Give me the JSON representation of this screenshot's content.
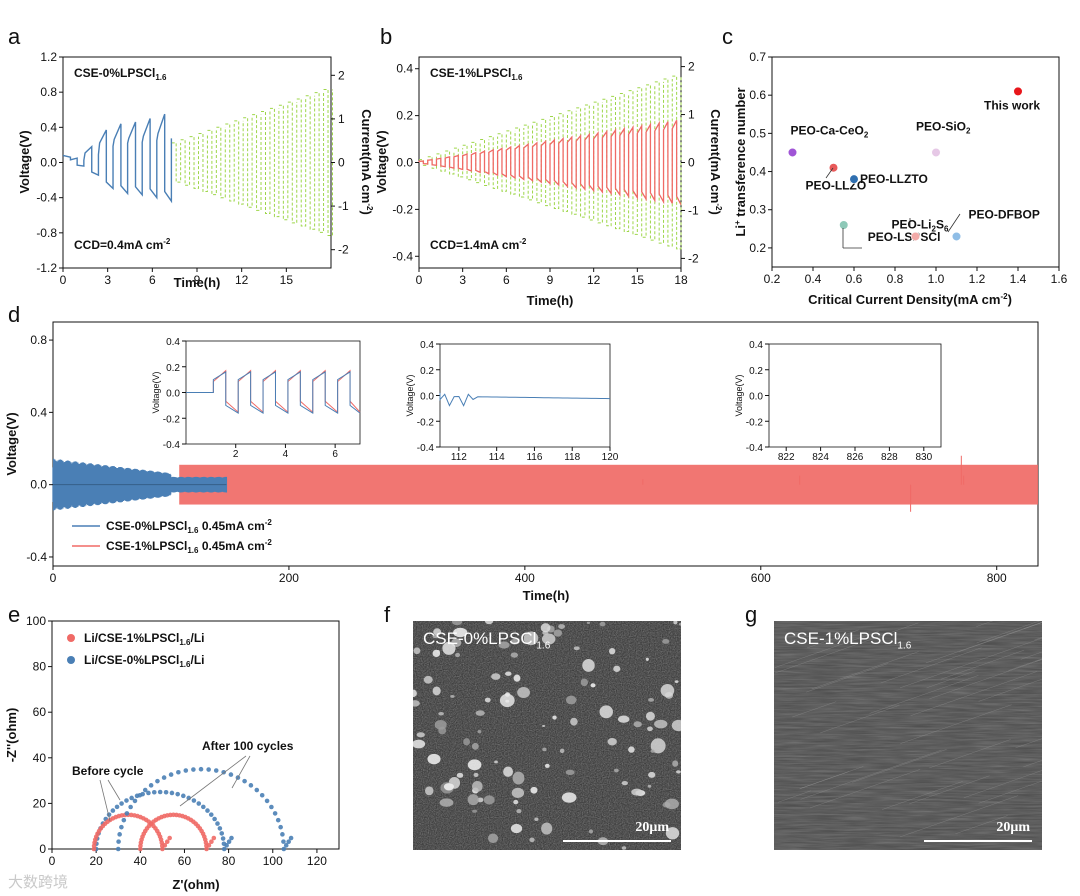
{
  "panels": {
    "a": "a",
    "b": "b",
    "c": "c",
    "d": "d",
    "e": "e",
    "f": "f",
    "g": "g"
  },
  "colors": {
    "blue": "#4a7fb5",
    "red": "#f06a66",
    "green": "#9ed64a",
    "dark_red": "#e8161b"
  },
  "chart_data": [
    {
      "id": "a",
      "type": "line",
      "title_main": "CSE-0%LPSCl",
      "title_sub": "1.6",
      "annotation": "CCD=0.4mA cm",
      "annotation_exp": "-2",
      "xlabel": "Time(h)",
      "ylabel": "Voltage(V)",
      "y2label": "Current(mA cm",
      "xlim": [
        0,
        18
      ],
      "ylim": [
        -1.2,
        1.2
      ],
      "y2lim": [
        -2.42,
        2.42
      ],
      "xticks": [
        0,
        3,
        6,
        9,
        12,
        15
      ],
      "yticks": [
        -1.2,
        -0.8,
        -0.4,
        0.0,
        0.4,
        0.8,
        1.2
      ],
      "yticklabels": [
        "-1.2",
        "-0.8",
        "-0.4",
        "0.0",
        "0.4",
        "0.8",
        "1.2"
      ],
      "y2ticks": [
        -2,
        -1,
        0,
        1,
        2
      ],
      "series": [
        {
          "name": "Voltage",
          "axis": "left",
          "color": "#4a7fb5",
          "cycle_hours": 1.0,
          "end_hour": 7.3,
          "cycle_amplitudes": [
            0.05,
            0.18,
            0.37,
            0.44,
            0.46,
            0.5,
            0.55
          ]
        },
        {
          "name": "Current",
          "axis": "right",
          "color": "#9ed64a",
          "cycle_hours": 0.6,
          "end_hour": 17.6,
          "amplitude_step": 0.05
        }
      ]
    },
    {
      "id": "b",
      "type": "line",
      "title_main": "CSE-1%LPSCl",
      "title_sub": "1.6",
      "annotation": "CCD=1.4mA cm",
      "annotation_exp": "-2",
      "xlabel": "Time(h)",
      "ylabel": "Voltage(V)",
      "y2label": "Current(mA cm",
      "xlim": [
        0,
        18
      ],
      "ylim": [
        -0.45,
        0.45
      ],
      "y2lim": [
        -2.2,
        2.2
      ],
      "xticks": [
        0,
        3,
        6,
        9,
        12,
        15,
        18
      ],
      "yticks": [
        -0.4,
        -0.2,
        0.0,
        0.2,
        0.4
      ],
      "yticklabels": [
        "-0.4",
        "-0.2",
        "0.0",
        "0.2",
        "0.4"
      ],
      "y2ticks": [
        -2,
        -1,
        0,
        1,
        2
      ],
      "series": [
        {
          "name": "Voltage",
          "axis": "left",
          "color": "#f06a66",
          "cycle_hours": 0.6,
          "end_hour": 18,
          "amplitude_step": 0.006
        },
        {
          "name": "Current",
          "axis": "right",
          "color": "#9ed64a",
          "cycle_hours": 0.6,
          "end_hour": 18,
          "amplitude_step": 0.06
        }
      ]
    },
    {
      "id": "c",
      "type": "scatter",
      "xlabel": "Critical Current Density(mA cm",
      "ylabel": "transference number",
      "ylabel_prefix": "Li",
      "xlim": [
        0.2,
        1.6
      ],
      "ylim": [
        0.15,
        0.7
      ],
      "xticks": [
        0.2,
        0.4,
        0.6,
        0.8,
        1.0,
        1.2,
        1.4,
        1.6
      ],
      "xticklabels": [
        "0.2",
        "0.4",
        "0.6",
        "0.8",
        "1.0",
        "1.2",
        "1.4",
        "1.6"
      ],
      "yticks": [
        0.2,
        0.3,
        0.4,
        0.5,
        0.6,
        0.7
      ],
      "yticklabels": [
        "0.2",
        "0.3",
        "0.4",
        "0.5",
        "0.6",
        "0.7"
      ],
      "points": [
        {
          "label": "PEO-Ca-CeO",
          "sub": "2",
          "x": 0.3,
          "y": 0.45,
          "color": "#a055d6"
        },
        {
          "label": "PEO-LLZO",
          "sub": "",
          "x": 0.5,
          "y": 0.41,
          "color": "#e85a5a"
        },
        {
          "label": "PEO-LLZTO",
          "sub": "",
          "x": 0.6,
          "y": 0.38,
          "color": "#2f6fb0"
        },
        {
          "label": "PEO-LSPSCl",
          "sub": "",
          "x": 0.55,
          "y": 0.26,
          "color": "#8ec9b8"
        },
        {
          "label": "PEO-SiO",
          "sub": "2",
          "x": 1.0,
          "y": 0.45,
          "color": "#e6c8e6"
        },
        {
          "label": "PEO-Li",
          "sub": "2",
          "label_tail": "S",
          "sub2": "6",
          "x": 0.9,
          "y": 0.23,
          "color": "#f2aaa8"
        },
        {
          "label": "PEO-DFBOP",
          "sub": "",
          "x": 1.1,
          "y": 0.23,
          "color": "#8fbde6"
        },
        {
          "label": "This work",
          "sub": "",
          "x": 1.4,
          "y": 0.61,
          "color": "#e8161b"
        }
      ]
    },
    {
      "id": "d",
      "type": "line",
      "xlabel": "Time(h)",
      "ylabel": "Voltage(V)",
      "xlim": [
        0,
        835
      ],
      "ylim": [
        -0.45,
        0.9
      ],
      "xticks": [
        0,
        200,
        400,
        600,
        800
      ],
      "yticks": [
        -0.4,
        0.0,
        0.4,
        0.8
      ],
      "yticklabels": [
        "-0.4",
        "0.0",
        "0.4",
        "0.8"
      ],
      "series": [
        {
          "name": "CSE-0%LPSCl",
          "sub": "1.6",
          "current": "0.45mA cm",
          "current_exp": "-2",
          "color": "#4a7fb5",
          "end_hour": 147,
          "band": 0.12
        },
        {
          "name": "CSE-1%LPSCl",
          "sub": "1.6",
          "current": "0.45mA cm",
          "current_exp": "-2",
          "color": "#f06a66",
          "start_hour": 147,
          "end_hour": 835,
          "band": 0.11
        }
      ],
      "insets": [
        {
          "xlim": [
            0,
            7
          ],
          "ylim": [
            -0.4,
            0.4
          ],
          "xticks": [
            2,
            4,
            6
          ],
          "yticks": [
            -0.4,
            -0.2,
            0.0,
            0.2,
            0.4
          ],
          "yticklabels": [
            "-0.4",
            "-0.2",
            "0.0",
            "0.2",
            "0.4"
          ],
          "ylabel": "Voltage(V)"
        },
        {
          "xlim": [
            111,
            120
          ],
          "ylim": [
            -0.4,
            0.4
          ],
          "xticks": [
            112,
            114,
            116,
            118,
            120
          ],
          "yticks": [
            -0.4,
            -0.2,
            0.0,
            0.2,
            0.4
          ],
          "yticklabels": [
            "-0.4",
            "-0.2",
            "0.0",
            "0.2",
            "0.4"
          ],
          "ylabel": "Voltage(V)"
        },
        {
          "xlim": [
            821,
            831
          ],
          "ylim": [
            -0.4,
            0.4
          ],
          "xticks": [
            822,
            824,
            826,
            828,
            830
          ],
          "yticks": [
            -0.4,
            -0.2,
            0.0,
            0.2,
            0.4
          ],
          "yticklabels": [
            "-0.4",
            "-0.2",
            "0.0",
            "0.2",
            "0.4"
          ],
          "ylabel": "Voltage(V)"
        }
      ]
    },
    {
      "id": "e",
      "type": "scatter",
      "xlabel": "Z'(ohm)",
      "ylabel": "-Z''(ohm)",
      "xlim": [
        0,
        130
      ],
      "ylim": [
        0,
        100
      ],
      "xticks": [
        0,
        20,
        40,
        60,
        80,
        100,
        120
      ],
      "yticks": [
        0,
        20,
        40,
        60,
        80,
        100
      ],
      "legend": [
        {
          "label": "Li/CSE-1%LPSCl",
          "sub": "1.6",
          "tail": "/Li",
          "color": "#f06a66"
        },
        {
          "label": "Li/CSE-0%LPSCl",
          "sub": "1.6",
          "tail": "/Li",
          "color": "#4a7fb5"
        }
      ],
      "annotations": [
        "Before cycle",
        "After 100 cycles"
      ],
      "arcs": [
        {
          "color": "#4a7fb5",
          "x0": 20,
          "x1": 78,
          "h": 25
        },
        {
          "color": "#f06a66",
          "x0": 19,
          "x1": 50,
          "h": 15
        },
        {
          "color": "#4a7fb5",
          "x0": 30,
          "x1": 105,
          "h": 35
        },
        {
          "color": "#f06a66",
          "x0": 40,
          "x1": 70,
          "h": 15
        }
      ]
    }
  ],
  "images": {
    "f": {
      "title_main": "CSE-0%LPSCl",
      "title_sub": "1.6",
      "scale": "20μm"
    },
    "g": {
      "title_main": "CSE-1%LPSCl",
      "title_sub": "1.6",
      "scale": "20μm"
    }
  },
  "watermark": "大数跨境"
}
